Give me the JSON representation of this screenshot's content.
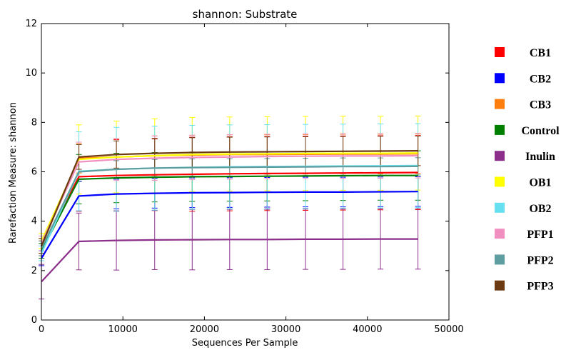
{
  "chart_data": {
    "type": "line",
    "title": "shannon: Substrate",
    "xlabel": "Sequences Per Sample",
    "ylabel": "Rarefaction Measure: shannon",
    "xlim": [
      0,
      50000
    ],
    "ylim": [
      0,
      12
    ],
    "xticks": [
      0,
      10000,
      20000,
      30000,
      40000,
      50000
    ],
    "yticks": [
      0,
      2,
      4,
      6,
      8,
      10,
      12
    ],
    "grid": false,
    "legend_placement": "right",
    "x": [
      10,
      4600,
      9200,
      13900,
      18500,
      23100,
      27700,
      32400,
      37000,
      41600,
      46200
    ],
    "series": [
      {
        "name": "CB1",
        "color": "#ff0000",
        "values": [
          2.9,
          5.8,
          5.85,
          5.88,
          5.9,
          5.92,
          5.93,
          5.94,
          5.95,
          5.96,
          5.97
        ],
        "err": [
          0.3,
          1.4,
          1.45,
          1.45,
          1.5,
          1.5,
          1.5,
          1.5,
          1.5,
          1.5,
          1.5
        ]
      },
      {
        "name": "CB2",
        "color": "#0000ff",
        "values": [
          2.5,
          5.02,
          5.1,
          5.13,
          5.15,
          5.16,
          5.17,
          5.18,
          5.18,
          5.19,
          5.2
        ],
        "err": [
          0.3,
          0.6,
          0.6,
          0.6,
          0.6,
          0.6,
          0.6,
          0.6,
          0.6,
          0.6,
          0.6
        ]
      },
      {
        "name": "CB3",
        "color": "#ff7f0e",
        "values": [
          3.0,
          6.55,
          6.6,
          6.65,
          6.68,
          6.7,
          6.7,
          6.71,
          6.72,
          6.72,
          6.73
        ],
        "err": [
          0.3,
          0.6,
          0.75,
          0.8,
          0.8,
          0.8,
          0.8,
          0.8,
          0.8,
          0.8,
          0.8
        ]
      },
      {
        "name": "Control",
        "color": "#007f00",
        "values": [
          2.8,
          5.7,
          5.75,
          5.78,
          5.8,
          5.81,
          5.82,
          5.83,
          5.84,
          5.85,
          5.85
        ],
        "err": [
          0.3,
          1.0,
          1.0,
          1.0,
          1.0,
          1.0,
          1.0,
          1.0,
          1.0,
          1.0,
          1.0
        ]
      },
      {
        "name": "Inulin",
        "color": "#8b2f8b",
        "values": [
          1.55,
          3.18,
          3.22,
          3.24,
          3.25,
          3.26,
          3.26,
          3.27,
          3.27,
          3.28,
          3.28
        ],
        "err": [
          0.7,
          1.15,
          1.2,
          1.2,
          1.22,
          1.22,
          1.22,
          1.22,
          1.22,
          1.22,
          1.22
        ]
      },
      {
        "name": "OB1",
        "color": "#ffff00",
        "values": [
          3.2,
          6.5,
          6.6,
          6.65,
          6.7,
          6.72,
          6.73,
          6.74,
          6.75,
          6.75,
          6.76
        ],
        "err": [
          0.3,
          1.4,
          1.45,
          1.5,
          1.5,
          1.5,
          1.5,
          1.5,
          1.5,
          1.5,
          1.5
        ]
      },
      {
        "name": "OB2",
        "color": "#66e0f0",
        "values": [
          2.7,
          6.02,
          6.1,
          6.15,
          6.18,
          6.2,
          6.21,
          6.22,
          6.23,
          6.24,
          6.25
        ],
        "err": [
          0.3,
          1.6,
          1.7,
          1.7,
          1.7,
          1.7,
          1.7,
          1.7,
          1.7,
          1.7,
          1.7
        ]
      },
      {
        "name": "PFP1",
        "color": "#f08fc0",
        "values": [
          3.1,
          6.4,
          6.5,
          6.55,
          6.58,
          6.6,
          6.62,
          6.63,
          6.64,
          6.64,
          6.65
        ],
        "err": [
          0.3,
          0.8,
          0.85,
          0.9,
          0.9,
          0.9,
          0.9,
          0.9,
          0.9,
          0.9,
          0.9
        ]
      },
      {
        "name": "PFP2",
        "color": "#5f9ea0",
        "values": [
          2.9,
          6.0,
          6.1,
          6.15,
          6.17,
          6.18,
          6.19,
          6.2,
          6.21,
          6.21,
          6.22
        ],
        "err": [
          0.3,
          0.4,
          0.35,
          0.35,
          0.35,
          0.35,
          0.35,
          0.35,
          0.35,
          0.35,
          0.35
        ]
      },
      {
        "name": "PFP3",
        "color": "#6b3a10",
        "values": [
          3.0,
          6.6,
          6.7,
          6.75,
          6.78,
          6.8,
          6.81,
          6.82,
          6.83,
          6.84,
          6.85
        ],
        "err": [
          0.3,
          0.5,
          0.55,
          0.6,
          0.6,
          0.6,
          0.6,
          0.6,
          0.6,
          0.6,
          0.6
        ]
      }
    ]
  }
}
